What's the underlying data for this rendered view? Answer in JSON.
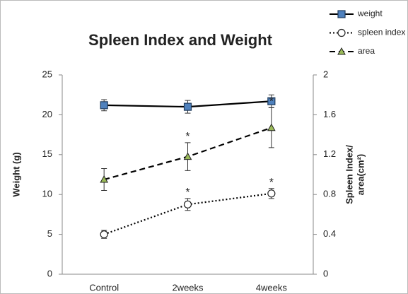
{
  "chart_data": {
    "type": "line",
    "title": "Spleen Index and Weight",
    "categories": [
      "Control",
      "2weeks",
      "4weeks"
    ],
    "ylabel": "Weight (g)",
    "y2label": [
      "Spleen Index/",
      "area(cm²)"
    ],
    "ylim": [
      0,
      25
    ],
    "yticks": [
      0,
      5,
      10,
      15,
      20,
      25
    ],
    "y2lim": [
      0,
      2
    ],
    "y2ticks": [
      0,
      {
        "value": 0.4,
        "label": "0.4"
      },
      {
        "value": 0.8,
        "label": "0.8"
      },
      {
        "value": 1.2,
        "label": "1.2"
      },
      {
        "value": 1.6,
        "label": "1.6"
      },
      2
    ],
    "legend": "top-right",
    "series": [
      {
        "name": "weight",
        "color": "#4f81bd",
        "marker": "square",
        "dash": "solid",
        "values": [
          21.2,
          21.0,
          21.7
        ],
        "errors": [
          0.7,
          0.8,
          0.8
        ],
        "significance": [
          null,
          null,
          null
        ]
      },
      {
        "name": "spleen index",
        "color": "#ffffff",
        "marker": "circle",
        "dash": "dotted",
        "axis": "y2",
        "values": [
          0.4,
          0.7,
          0.81
        ],
        "errors": [
          0.04,
          0.06,
          0.05
        ],
        "significance": [
          null,
          "*",
          "*"
        ]
      },
      {
        "name": "area",
        "color": "#9bbb59",
        "marker": "triangle",
        "dash": "dashed",
        "axis": "y2",
        "values": [
          0.95,
          1.18,
          1.47
        ],
        "errors": [
          0.11,
          0.14,
          0.2
        ],
        "significance": [
          null,
          "*",
          "*"
        ]
      }
    ]
  }
}
